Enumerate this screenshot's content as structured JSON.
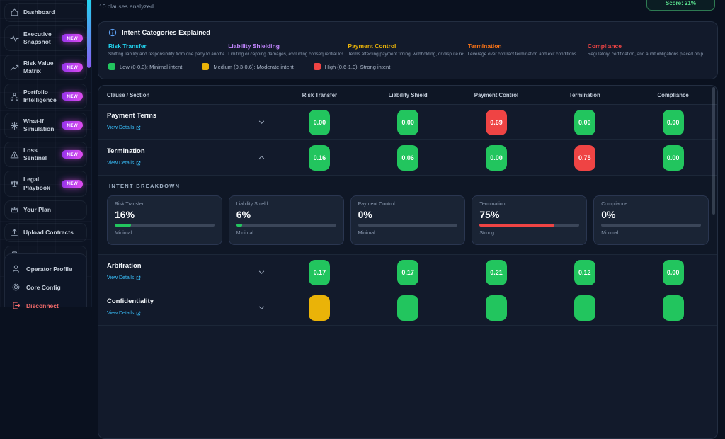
{
  "header": {
    "subtitle": "10 clauses analyzed",
    "score_badge": "Score: 21%"
  },
  "sidebar": {
    "new_badge_label": "NEW",
    "items": [
      {
        "label": "Dashboard",
        "icon": "home-icon",
        "new": false
      },
      {
        "label": "Executive Snapshot",
        "icon": "activity-icon",
        "new": true
      },
      {
        "label": "Risk Value Matrix",
        "icon": "trend-up-icon",
        "new": true
      },
      {
        "label": "Portfolio Intelligence",
        "icon": "network-icon",
        "new": true
      },
      {
        "label": "What-If Simulation",
        "icon": "sparkle-icon",
        "new": true
      },
      {
        "label": "Loss Sentinel",
        "icon": "warning-icon",
        "new": true
      },
      {
        "label": "Legal Playbook",
        "icon": "scales-icon",
        "new": true
      },
      {
        "label": "Your Plan",
        "icon": "crown-icon",
        "new": false
      },
      {
        "label": "Upload Contracts",
        "icon": "upload-icon",
        "new": false
      },
      {
        "label": "My Contracts",
        "icon": "document-icon",
        "new": false
      }
    ],
    "footer_items": [
      {
        "label": "Operator Profile",
        "icon": "user-icon"
      },
      {
        "label": "Core Config",
        "icon": "gear-icon"
      },
      {
        "label": "Disconnect",
        "icon": "logout-icon"
      }
    ]
  },
  "legend_card": {
    "title": "Intent Categories Explained",
    "categories": [
      {
        "name": "Risk Transfer",
        "color": "#22d3ee",
        "description": "Shifting liability and responsibility from one party to another"
      },
      {
        "name": "Liability Shielding",
        "color": "#c084fc",
        "description": "Limiting or capping damages, excluding consequential losses"
      },
      {
        "name": "Payment Control",
        "color": "#eab308",
        "description": "Terms affecting payment timing, withholding, or dispute resolution"
      },
      {
        "name": "Termination",
        "color": "#f97316",
        "description": "Leverage over contract termination and exit conditions"
      },
      {
        "name": "Compliance",
        "color": "#ef4444",
        "description": "Regulatory, certification, and audit obligations placed on parties"
      }
    ],
    "legend": [
      {
        "swatch": "#22c55e",
        "label": "Low (0-0.3): Minimal intent"
      },
      {
        "swatch": "#eab308",
        "label": "Medium (0.3-0.6): Moderate intent"
      },
      {
        "swatch": "#ef4444",
        "label": "High (0.6-1.0): Strong intent"
      }
    ]
  },
  "table": {
    "columns": [
      "Clause / Section",
      "Risk Transfer",
      "Liability Shield",
      "Payment Control",
      "Termination",
      "Compliance"
    ],
    "view_details_label": "View Details",
    "rows": [
      {
        "name": "Payment Terms",
        "expanded": false,
        "scores": [
          {
            "value": "0.00",
            "level": "low"
          },
          {
            "value": "0.00",
            "level": "low"
          },
          {
            "value": "0.69",
            "level": "high"
          },
          {
            "value": "0.00",
            "level": "low"
          },
          {
            "value": "0.00",
            "level": "low"
          }
        ]
      },
      {
        "name": "Termination",
        "expanded": true,
        "scores": [
          {
            "value": "0.16",
            "level": "low"
          },
          {
            "value": "0.06",
            "level": "low"
          },
          {
            "value": "0.00",
            "level": "low"
          },
          {
            "value": "0.75",
            "level": "high"
          },
          {
            "value": "0.00",
            "level": "low"
          }
        ]
      },
      {
        "name": "Arbitration",
        "expanded": false,
        "scores": [
          {
            "value": "0.17",
            "level": "low"
          },
          {
            "value": "0.17",
            "level": "low"
          },
          {
            "value": "0.21",
            "level": "low"
          },
          {
            "value": "0.12",
            "level": "low"
          },
          {
            "value": "0.00",
            "level": "low"
          }
        ]
      },
      {
        "name": "Confidentiality",
        "expanded": false,
        "scores": [
          {
            "value": "",
            "level": "med"
          },
          {
            "value": "",
            "level": "low"
          },
          {
            "value": "",
            "level": "low"
          },
          {
            "value": "",
            "level": "low"
          },
          {
            "value": "",
            "level": "low"
          }
        ]
      }
    ]
  },
  "breakdown": {
    "title": "INTENT BREAKDOWN",
    "cards": [
      {
        "name": "Risk Transfer",
        "percent_label": "16%",
        "percent": 16,
        "level": "Minimal",
        "bar_color": "#22c55e"
      },
      {
        "name": "Liability Shield",
        "percent_label": "6%",
        "percent": 6,
        "level": "Minimal",
        "bar_color": "#22c55e"
      },
      {
        "name": "Payment Control",
        "percent_label": "0%",
        "percent": 0,
        "level": "Minimal",
        "bar_color": "#22c55e"
      },
      {
        "name": "Termination",
        "percent_label": "75%",
        "percent": 75,
        "level": "Strong",
        "bar_color": "#ef4444"
      },
      {
        "name": "Compliance",
        "percent_label": "0%",
        "percent": 0,
        "level": "Minimal",
        "bar_color": "#22c55e"
      }
    ]
  }
}
